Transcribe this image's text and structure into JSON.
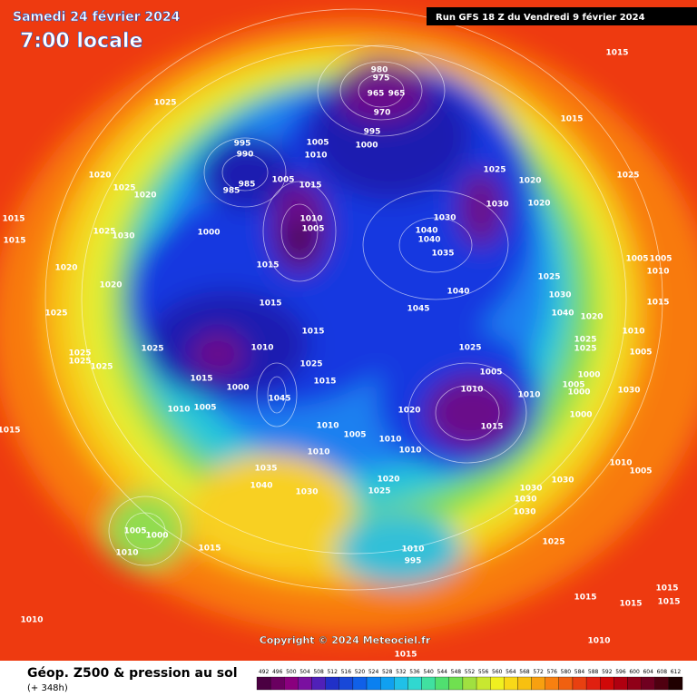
{
  "header": {
    "date": "Samedi 24 février 2024",
    "time": "7:00 locale",
    "run": "Run GFS 18 Z du Vendredi 9 février 2024"
  },
  "copyright": "Copyright © 2024 Meteociel.fr",
  "footer": {
    "title": "Géop. Z500 & pression au sol",
    "subtitle": "(+ 348h)"
  },
  "legend": {
    "values": [
      492,
      496,
      500,
      504,
      508,
      512,
      516,
      520,
      524,
      528,
      532,
      536,
      540,
      544,
      548,
      552,
      556,
      560,
      564,
      568,
      572,
      576,
      580,
      584,
      588,
      592,
      596,
      600,
      604,
      608,
      612
    ]
  },
  "isobar_labels": [
    1015,
    1025,
    980,
    975,
    965,
    965,
    970,
    995,
    990,
    1005,
    1010,
    995,
    1000,
    1015,
    1025,
    1020,
    1025,
    1020,
    1025,
    1020,
    985,
    985,
    1005,
    1015,
    1030,
    1030,
    1020,
    1015,
    1025,
    1030,
    1000,
    1010,
    1005,
    1040,
    1040,
    1035,
    1015,
    1005,
    1005,
    1010,
    1020,
    1020,
    1015,
    1025,
    1040,
    1030,
    1015,
    1025,
    1015,
    1045,
    1040,
    1020,
    1015,
    1010,
    1025,
    1025,
    1025,
    1010,
    1025,
    1025,
    1005,
    1025,
    1025,
    1025,
    1005,
    1000,
    1015,
    1015,
    1010,
    1010,
    1000,
    1045,
    1005,
    1000,
    1030,
    1010,
    1005,
    1020,
    1000,
    1015,
    1015,
    1010,
    1005,
    1010,
    1010,
    1010,
    1010,
    1005,
    1035,
    1030,
    1020,
    1040,
    1030,
    1025,
    1030,
    1030,
    1030,
    1005,
    1000,
    1010,
    1015,
    1025,
    1010,
    995,
    1015,
    1015,
    1015,
    1015,
    1010,
    1010,
    1015
  ]
}
